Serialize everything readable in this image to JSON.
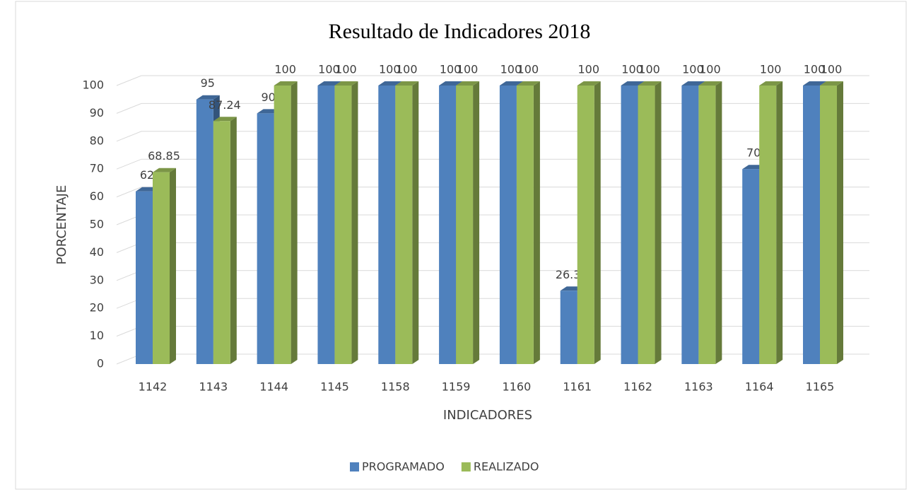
{
  "chart_data": {
    "type": "bar3d",
    "title": "Resultado de Indicadores 2018",
    "x_label": "INDICADORES",
    "y_label": "PORCENTAJE",
    "categories": [
      "1142",
      "1143",
      "1144",
      "1145",
      "1158",
      "1159",
      "1160",
      "1161",
      "1162",
      "1163",
      "1164",
      "1165"
    ],
    "series": [
      {
        "name": "PROGRAMADO",
        "color": "#4f81bd",
        "values": [
          62,
          95,
          90,
          100,
          100,
          100,
          100,
          26.32,
          100,
          100,
          70,
          100
        ]
      },
      {
        "name": "REALIZADO",
        "color": "#9bbb59",
        "values": [
          68.85,
          87.24,
          100,
          100,
          100,
          100,
          100,
          100,
          100,
          100,
          100,
          100
        ]
      }
    ],
    "ylim": [
      0,
      100
    ],
    "yticks": [
      0,
      10,
      20,
      30,
      40,
      50,
      60,
      70,
      80,
      90,
      100
    ],
    "grid": true,
    "legend": "bottom"
  }
}
